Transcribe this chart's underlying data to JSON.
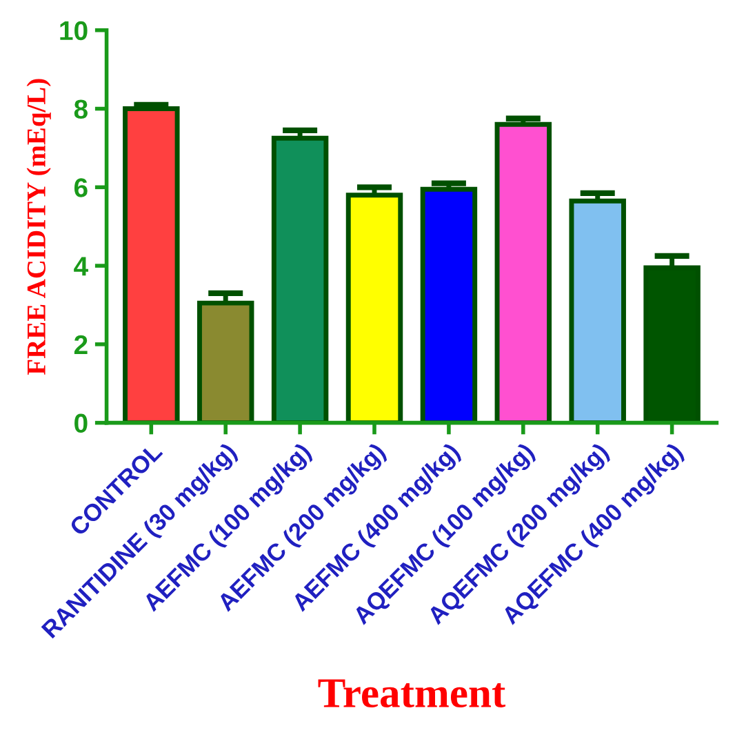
{
  "chart_data": {
    "type": "bar",
    "xlabel": "Treatment",
    "ylabel": "FREE ACIDITY (mEq/L)",
    "categories": [
      "CONTROL",
      "RANITIDINE (30 mg/kg)",
      "AEFMC (100 mg/kg)",
      "AEFMC (200 mg/kg)",
      "AEFMC (400 mg/kg)",
      "AQEFMC (100 mg/kg)",
      "AQEFMC (200 mg/kg)",
      "AQEFMC (400 mg/kg)"
    ],
    "values": [
      8.0,
      3.05,
      7.25,
      5.8,
      5.95,
      7.6,
      5.65,
      3.95
    ],
    "errors": [
      0.1,
      0.25,
      0.2,
      0.2,
      0.15,
      0.15,
      0.2,
      0.3
    ],
    "colors": [
      "#ff4040",
      "#8a8a30",
      "#10905a",
      "#ffff00",
      "#0000ff",
      "#ff50d0",
      "#80c0f0",
      "#005500"
    ],
    "ylim": [
      0,
      10
    ],
    "yticks": [
      0,
      2,
      4,
      6,
      8,
      10
    ],
    "grid": false,
    "legend": false
  }
}
